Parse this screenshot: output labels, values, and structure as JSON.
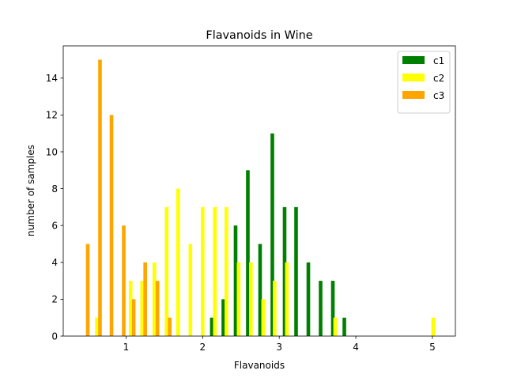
{
  "chart_data": {
    "type": "bar",
    "title": "Flavanoids in Wine",
    "xlabel": "Flavanoids",
    "ylabel": "number of samples",
    "xlim": [
      0.18,
      5.3
    ],
    "ylim": [
      0,
      15.75
    ],
    "xticks": [
      1,
      2,
      3,
      4,
      5
    ],
    "yticks": [
      0,
      2,
      4,
      6,
      8,
      10,
      12,
      14
    ],
    "legend_position": "top-right",
    "series": [
      {
        "name": "c1",
        "color": "#008000",
        "points": [
          {
            "x": 2.12,
            "y": 1
          },
          {
            "x": 2.27,
            "y": 2
          },
          {
            "x": 2.43,
            "y": 6
          },
          {
            "x": 2.59,
            "y": 9
          },
          {
            "x": 2.75,
            "y": 5
          },
          {
            "x": 2.91,
            "y": 11
          },
          {
            "x": 3.07,
            "y": 7
          },
          {
            "x": 3.22,
            "y": 7
          },
          {
            "x": 3.38,
            "y": 4
          },
          {
            "x": 3.54,
            "y": 3
          },
          {
            "x": 3.7,
            "y": 3
          },
          {
            "x": 3.85,
            "y": 1
          }
        ]
      },
      {
        "name": "c2",
        "color": "#ffff00",
        "points": [
          {
            "x": 0.62,
            "y": 1
          },
          {
            "x": 1.06,
            "y": 3
          },
          {
            "x": 1.21,
            "y": 3
          },
          {
            "x": 1.37,
            "y": 4
          },
          {
            "x": 1.53,
            "y": 7
          },
          {
            "x": 1.68,
            "y": 8
          },
          {
            "x": 1.84,
            "y": 5
          },
          {
            "x": 2.0,
            "y": 7
          },
          {
            "x": 2.16,
            "y": 7
          },
          {
            "x": 2.31,
            "y": 7
          },
          {
            "x": 2.47,
            "y": 4
          },
          {
            "x": 2.63,
            "y": 4
          },
          {
            "x": 2.79,
            "y": 2
          },
          {
            "x": 2.94,
            "y": 3
          },
          {
            "x": 3.1,
            "y": 4
          },
          {
            "x": 3.73,
            "y": 1
          },
          {
            "x": 5.01,
            "y": 1
          }
        ]
      },
      {
        "name": "c3",
        "color": "#ffa500",
        "points": [
          {
            "x": 0.5,
            "y": 5
          },
          {
            "x": 0.66,
            "y": 15
          },
          {
            "x": 0.81,
            "y": 12
          },
          {
            "x": 0.97,
            "y": 6
          },
          {
            "x": 1.1,
            "y": 2
          },
          {
            "x": 1.25,
            "y": 4
          },
          {
            "x": 1.41,
            "y": 3
          },
          {
            "x": 1.57,
            "y": 1
          }
        ]
      }
    ]
  }
}
